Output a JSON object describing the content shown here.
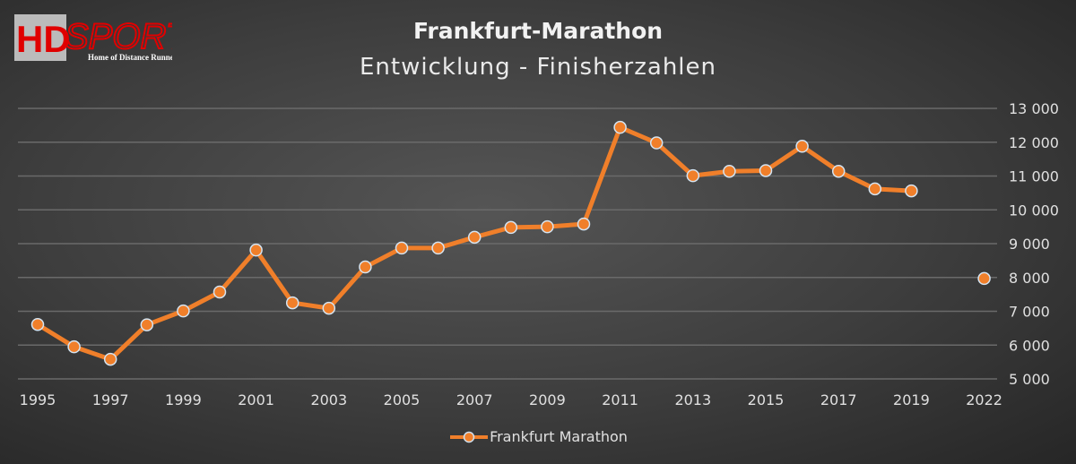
{
  "logo": {
    "brand": "HDSPORTS",
    "tagline": "Home of Distance Runners"
  },
  "chart_data": {
    "type": "line",
    "title": "Frankfurt-Marathon",
    "subtitle": "Entwicklung - Finisherzahlen",
    "xlabel": "",
    "ylabel": "",
    "categories": [
      "1995",
      "1996",
      "1997",
      "1998",
      "1999",
      "2000",
      "2001",
      "2002",
      "2003",
      "2004",
      "2005",
      "2006",
      "2007",
      "2008",
      "2009",
      "2010",
      "2011",
      "2012",
      "2013",
      "2014",
      "2015",
      "2016",
      "2017",
      "2018",
      "2019",
      "",
      "2022"
    ],
    "tick_labels_shown": [
      "1995",
      "1997",
      "1999",
      "2001",
      "2003",
      "2005",
      "2007",
      "2009",
      "2011",
      "2013",
      "2015",
      "2017",
      "2019",
      "2022"
    ],
    "series": [
      {
        "name": "Frankfurt Marathon",
        "color": "#f07f2a",
        "values": [
          6610,
          5950,
          5580,
          6600,
          7010,
          7570,
          8810,
          7250,
          7090,
          8310,
          8870,
          8870,
          9190,
          9480,
          9500,
          9580,
          12440,
          11980,
          11010,
          11140,
          11160,
          11880,
          11140,
          10620,
          10560,
          null,
          7970
        ]
      }
    ],
    "ylim": [
      5000,
      13000
    ],
    "yticks": [
      "5 000",
      "6 000",
      "7 000",
      "8 000",
      "9 000",
      "10 000",
      "11 000",
      "12 000",
      "13 000"
    ],
    "y_axis_position": "right",
    "grid": true,
    "legend_position": "bottom"
  }
}
